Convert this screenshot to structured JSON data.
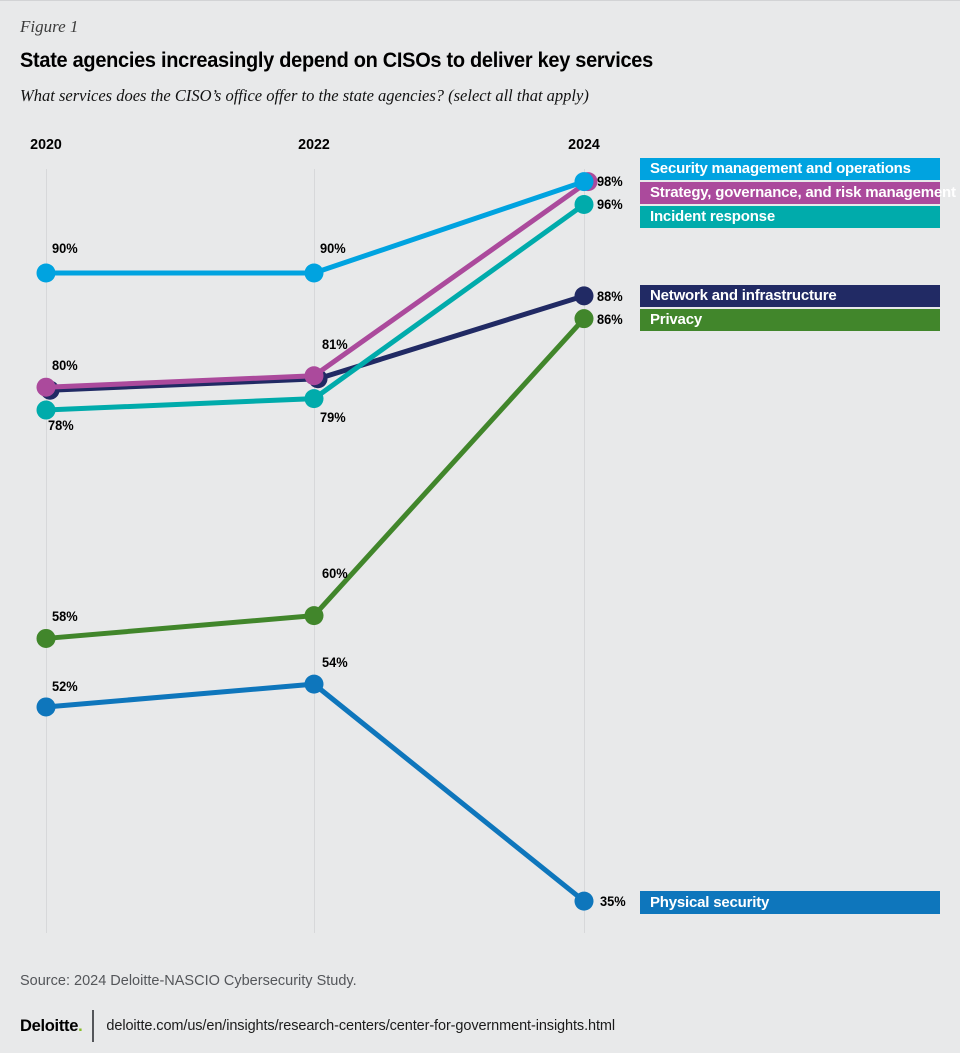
{
  "figure_label": "Figure 1",
  "title": "State agencies increasingly depend on CISOs to deliver key services",
  "subtitle": "What services does the CISO’s office offer to the state agencies? (select all that apply)",
  "source": "Source: 2024 Deloitte-NASCIO Cybersecurity Study.",
  "footer": {
    "brand": "Deloitte",
    "brand_dot": ".",
    "url": "deloitte.com/us/en/insights/research-centers/center-for-government-insights.html"
  },
  "colors": {
    "background": "#E8E9EA",
    "gridline": "#D7D8DA",
    "source_text": "#54565A",
    "brand_green": "#86BC25"
  },
  "chart_data": {
    "type": "line",
    "categories": [
      "2020",
      "2022",
      "2024"
    ],
    "ylim": [
      30,
      100
    ],
    "grid": "vertical-only",
    "legend_position": "right-color-bands",
    "series": [
      {
        "name": "Security management and operations",
        "color": "#00A3E0",
        "values": [
          90,
          90,
          98
        ],
        "point_labels": [
          "90%",
          "90%",
          "98%"
        ]
      },
      {
        "name": "Strategy, governance, and risk management",
        "color": "#AB4A9C",
        "values": [
          80,
          81,
          98
        ],
        "point_labels": [
          "80%",
          "81%",
          ""
        ]
      },
      {
        "name": "Incident response",
        "color": "#00ABAB",
        "values": [
          78,
          79,
          96
        ],
        "point_labels": [
          "78%",
          "79%",
          "96%"
        ]
      },
      {
        "name": "Network and infrastructure",
        "color": "#212A64",
        "values": [
          80,
          81,
          88
        ],
        "point_labels": [
          "",
          "",
          "88%"
        ]
      },
      {
        "name": "Privacy",
        "color": "#41862B",
        "values": [
          58,
          60,
          86
        ],
        "point_labels": [
          "58%",
          "60%",
          "86%"
        ]
      },
      {
        "name": "Physical security",
        "color": "#0E76BC",
        "values": [
          52,
          54,
          35
        ],
        "point_labels": [
          "52%",
          "54%",
          "35%"
        ]
      }
    ]
  }
}
